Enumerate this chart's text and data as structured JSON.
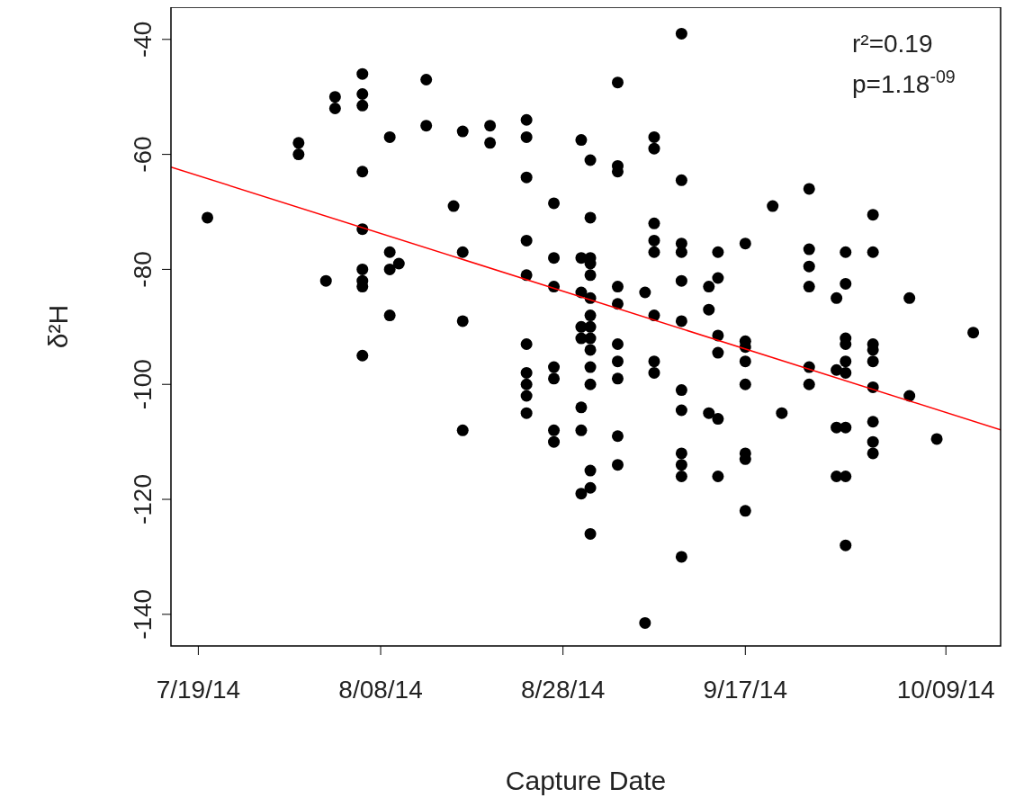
{
  "chart_data": {
    "type": "scatter",
    "xlabel": "Capture Date",
    "ylabel": "δ²H",
    "annotations": [
      "r²=0.19",
      "p=1.18$^{-09}$"
    ],
    "xlim": [
      "2014-07-16",
      "2014-10-15"
    ],
    "ylim": [
      -145.5,
      -34.4
    ],
    "xticks": [
      {
        "value": "2014-07-19",
        "label": "7/19/14"
      },
      {
        "value": "2014-08-08",
        "label": "8/08/14"
      },
      {
        "value": "2014-08-28",
        "label": "8/28/14"
      },
      {
        "value": "2014-09-17",
        "label": "9/17/14"
      },
      {
        "value": "2014-10-09",
        "label": "10/09/14"
      }
    ],
    "yticks": [
      -140,
      -120,
      -100,
      -80,
      -60,
      -40
    ],
    "grid": false,
    "series": [
      {
        "marker": "circle",
        "color": "#000000",
        "x": [
          "2014-07-20",
          "2014-07-30",
          "2014-07-30",
          "2014-08-02",
          "2014-08-03",
          "2014-08-03",
          "2014-08-06",
          "2014-08-06",
          "2014-08-06",
          "2014-08-06",
          "2014-08-06",
          "2014-08-06",
          "2014-08-06",
          "2014-08-06",
          "2014-08-06",
          "2014-08-09",
          "2014-08-09",
          "2014-08-09",
          "2014-08-09",
          "2014-08-10",
          "2014-08-13",
          "2014-08-13",
          "2014-08-16",
          "2014-08-17",
          "2014-08-17",
          "2014-08-17",
          "2014-08-17",
          "2014-08-20",
          "2014-08-20",
          "2014-08-24",
          "2014-08-24",
          "2014-08-24",
          "2014-08-24",
          "2014-08-24",
          "2014-08-24",
          "2014-08-24",
          "2014-08-24",
          "2014-08-24",
          "2014-08-24",
          "2014-08-27",
          "2014-08-27",
          "2014-08-27",
          "2014-08-27",
          "2014-08-27",
          "2014-08-27",
          "2014-08-27",
          "2014-08-30",
          "2014-08-30",
          "2014-08-30",
          "2014-08-30",
          "2014-08-30",
          "2014-08-30",
          "2014-08-30",
          "2014-08-30",
          "2014-08-31",
          "2014-08-31",
          "2014-08-31",
          "2014-08-31",
          "2014-08-31",
          "2014-08-31",
          "2014-08-31",
          "2014-08-31",
          "2014-08-31",
          "2014-08-31",
          "2014-08-31",
          "2014-08-31",
          "2014-08-31",
          "2014-08-31",
          "2014-08-31",
          "2014-09-03",
          "2014-09-03",
          "2014-09-03",
          "2014-09-03",
          "2014-09-03",
          "2014-09-03",
          "2014-09-03",
          "2014-09-03",
          "2014-09-03",
          "2014-09-03",
          "2014-09-06",
          "2014-09-06",
          "2014-09-07",
          "2014-09-07",
          "2014-09-07",
          "2014-09-07",
          "2014-09-07",
          "2014-09-07",
          "2014-09-07",
          "2014-09-07",
          "2014-09-10",
          "2014-09-10",
          "2014-09-10",
          "2014-09-10",
          "2014-09-10",
          "2014-09-10",
          "2014-09-10",
          "2014-09-10",
          "2014-09-10",
          "2014-09-10",
          "2014-09-10",
          "2014-09-10",
          "2014-09-13",
          "2014-09-13",
          "2014-09-13",
          "2014-09-14",
          "2014-09-14",
          "2014-09-14",
          "2014-09-14",
          "2014-09-14",
          "2014-09-14",
          "2014-09-17",
          "2014-09-17",
          "2014-09-17",
          "2014-09-17",
          "2014-09-17",
          "2014-09-17",
          "2014-09-17",
          "2014-09-17",
          "2014-09-20",
          "2014-09-21",
          "2014-09-24",
          "2014-09-24",
          "2014-09-24",
          "2014-09-24",
          "2014-09-24",
          "2014-09-24",
          "2014-09-27",
          "2014-09-27",
          "2014-09-27",
          "2014-09-27",
          "2014-09-28",
          "2014-09-28",
          "2014-09-28",
          "2014-09-28",
          "2014-09-28",
          "2014-09-28",
          "2014-09-28",
          "2014-09-28",
          "2014-09-28",
          "2014-10-01",
          "2014-10-01",
          "2014-10-01",
          "2014-10-01",
          "2014-10-01",
          "2014-10-01",
          "2014-10-01",
          "2014-10-01",
          "2014-10-01",
          "2014-10-05",
          "2014-10-05",
          "2014-10-08",
          "2014-10-12"
        ],
        "values": [
          -71,
          -58,
          -60,
          -82,
          -50,
          -52,
          -46,
          -49.5,
          -51.5,
          -63,
          -73,
          -80,
          -82,
          -83,
          -95,
          -57,
          -77,
          -80,
          -88,
          -79,
          -47,
          -55,
          -69,
          -56,
          -77,
          -89,
          -108,
          -55,
          -58,
          -54,
          -57,
          -64,
          -75,
          -81,
          -93,
          -98,
          -100,
          -102,
          -105,
          -68.5,
          -78,
          -83,
          -97,
          -99,
          -108,
          -110,
          -57.5,
          -78,
          -84,
          -90,
          -92,
          -104,
          -108,
          -119,
          -61,
          -71,
          -78,
          -79,
          -81,
          -85,
          -88,
          -90,
          -92,
          -94,
          -97,
          -100,
          -115,
          -118,
          -126,
          -47.5,
          -62,
          -63,
          -83,
          -86,
          -93,
          -96,
          -99,
          -109,
          -114,
          -84,
          -141.5,
          -57,
          -59,
          -72,
          -75,
          -77,
          -88,
          -96,
          -98,
          -39,
          -64.5,
          -75.5,
          -77,
          -82,
          -89,
          -101,
          -104.5,
          -112,
          -114,
          -116,
          -130,
          -83,
          -87,
          -105,
          -77,
          -81.5,
          -91.5,
          -94.5,
          -106,
          -116,
          -75.5,
          -92.5,
          -93.5,
          -96,
          -100,
          -112,
          -113,
          -122,
          -69,
          -105,
          -66,
          -76.5,
          -79.5,
          -83,
          -97,
          -100,
          -85,
          -97.5,
          -107.5,
          -116,
          -77,
          -82.5,
          -92,
          -93,
          -96,
          -98,
          -107.5,
          -116,
          -128,
          -70.5,
          -77,
          -93,
          -94,
          -96,
          -100.5,
          -106.5,
          -110,
          -112,
          -85,
          -102,
          -109.5,
          -91
        ]
      },
      {
        "type": "line",
        "color": "#ff0000",
        "x": [
          "2014-07-16",
          "2014-10-15"
        ],
        "values": [
          -62.2,
          -107.9
        ]
      }
    ]
  }
}
